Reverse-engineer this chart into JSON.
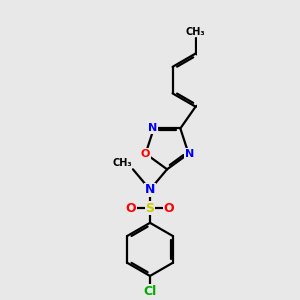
{
  "background_color": "#e8e8e8",
  "bond_color": "#000000",
  "atom_colors": {
    "N": "#0000ff",
    "O": "#ff0000",
    "S": "#cccc00",
    "Cl": "#00aa00",
    "C": "#000000"
  },
  "figsize": [
    3.0,
    3.0
  ],
  "dpi": 100,
  "lw": 1.6,
  "ring_lw": 1.6
}
